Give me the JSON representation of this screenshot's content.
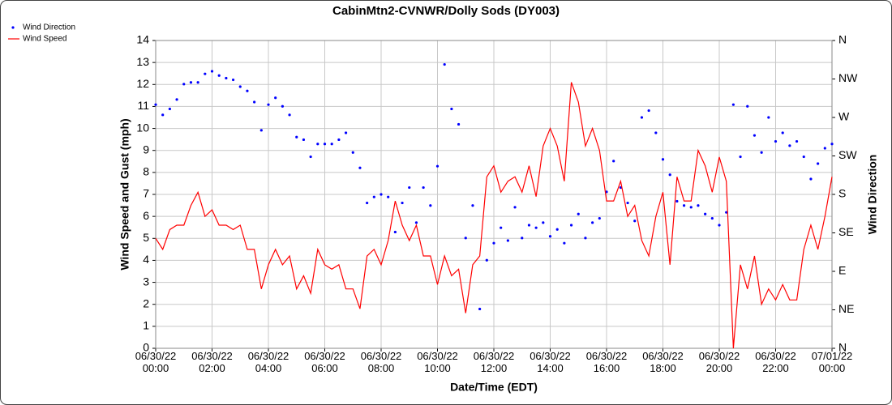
{
  "chart_data": {
    "type": "line",
    "title": "CabinMtn2-CVNWR/Dolly Sods (DY003)",
    "x_label": "Date/Time (EDT)",
    "y_label": "Wind Speed and Gust (mph)",
    "y2_label": "Wind Direction",
    "legend": "top-left",
    "grid": true,
    "x": [
      "06/30/22 00:00",
      "06/30/22 00:15",
      "06/30/22 00:30",
      "06/30/22 00:45",
      "06/30/22 01:00",
      "06/30/22 01:15",
      "06/30/22 01:30",
      "06/30/22 01:45",
      "06/30/22 02:00",
      "06/30/22 02:15",
      "06/30/22 02:30",
      "06/30/22 02:45",
      "06/30/22 03:00",
      "06/30/22 03:15",
      "06/30/22 03:30",
      "06/30/22 03:45",
      "06/30/22 04:00",
      "06/30/22 04:15",
      "06/30/22 04:30",
      "06/30/22 04:45",
      "06/30/22 05:00",
      "06/30/22 05:15",
      "06/30/22 05:30",
      "06/30/22 05:45",
      "06/30/22 06:00",
      "06/30/22 06:15",
      "06/30/22 06:30",
      "06/30/22 06:45",
      "06/30/22 07:00",
      "06/30/22 07:15",
      "06/30/22 07:30",
      "06/30/22 07:45",
      "06/30/22 08:00",
      "06/30/22 08:15",
      "06/30/22 08:30",
      "06/30/22 08:45",
      "06/30/22 09:00",
      "06/30/22 09:15",
      "06/30/22 09:30",
      "06/30/22 09:45",
      "06/30/22 10:00",
      "06/30/22 10:15",
      "06/30/22 10:30",
      "06/30/22 10:45",
      "06/30/22 11:00",
      "06/30/22 11:15",
      "06/30/22 11:30",
      "06/30/22 11:45",
      "06/30/22 12:00",
      "06/30/22 12:15",
      "06/30/22 12:30",
      "06/30/22 12:45",
      "06/30/22 13:00",
      "06/30/22 13:15",
      "06/30/22 13:30",
      "06/30/22 13:45",
      "06/30/22 14:00",
      "06/30/22 14:15",
      "06/30/22 14:30",
      "06/30/22 14:45",
      "06/30/22 15:00",
      "06/30/22 15:15",
      "06/30/22 15:30",
      "06/30/22 15:45",
      "06/30/22 16:00",
      "06/30/22 16:15",
      "06/30/22 16:30",
      "06/30/22 16:45",
      "06/30/22 17:00",
      "06/30/22 17:15",
      "06/30/22 17:30",
      "06/30/22 17:45",
      "06/30/22 18:00",
      "06/30/22 18:15",
      "06/30/22 18:30",
      "06/30/22 18:45",
      "06/30/22 19:00",
      "06/30/22 19:15",
      "06/30/22 19:30",
      "06/30/22 19:45",
      "06/30/22 20:00",
      "06/30/22 20:15",
      "06/30/22 20:30",
      "06/30/22 20:45",
      "06/30/22 21:00",
      "06/30/22 21:15",
      "06/30/22 21:30",
      "06/30/22 21:45",
      "06/30/22 22:00",
      "06/30/22 22:15",
      "06/30/22 22:30",
      "06/30/22 22:45",
      "06/30/22 23:00",
      "06/30/22 23:15",
      "06/30/22 23:30",
      "06/30/22 23:45",
      "07/01/22 00:00"
    ],
    "xlim": [
      "06/30/22 00:00",
      "07/01/22 00:00"
    ],
    "xticks": [
      "06/30/22 00:00",
      "06/30/22 02:00",
      "06/30/22 04:00",
      "06/30/22 06:00",
      "06/30/22 08:00",
      "06/30/22 10:00",
      "06/30/22 12:00",
      "06/30/22 14:00",
      "06/30/22 16:00",
      "06/30/22 18:00",
      "06/30/22 20:00",
      "06/30/22 22:00",
      "07/01/22 00:00"
    ],
    "ylim": [
      0,
      14
    ],
    "yticks": [
      0,
      1,
      2,
      3,
      4,
      5,
      6,
      7,
      8,
      9,
      10,
      11,
      12,
      13,
      14
    ],
    "y2lim": [
      0,
      360
    ],
    "y2ticks": [
      {
        "value": 0,
        "label": "N"
      },
      {
        "value": 45,
        "label": "NE"
      },
      {
        "value": 90,
        "label": "E"
      },
      {
        "value": 135,
        "label": "SE"
      },
      {
        "value": 180,
        "label": "S"
      },
      {
        "value": 225,
        "label": "SW"
      },
      {
        "value": 270,
        "label": "W"
      },
      {
        "value": 315,
        "label": "NW"
      },
      {
        "value": 360,
        "label": "N"
      }
    ],
    "series": [
      {
        "name": "Wind Direction",
        "type": "scatter",
        "axis": "y2",
        "color": "#0000ff",
        "values": [
          285,
          273,
          280,
          291,
          309,
          311,
          311,
          321,
          324,
          319,
          316,
          314,
          306,
          301,
          288,
          255,
          285,
          293,
          283,
          273,
          247,
          244,
          224,
          239,
          239,
          239,
          244,
          252,
          229,
          211,
          170,
          177,
          180,
          177,
          136,
          170,
          188,
          147,
          188,
          167,
          213,
          332,
          280,
          262,
          129,
          167,
          46,
          103,
          123,
          141,
          126,
          165,
          129,
          144,
          141,
          147,
          131,
          139,
          123,
          144,
          157,
          129,
          147,
          152,
          183,
          219,
          188,
          170,
          149,
          270,
          278,
          252,
          221,
          203,
          172,
          167,
          165,
          167,
          157,
          152,
          144,
          159,
          285,
          224,
          283,
          249,
          229,
          270,
          242,
          252,
          237,
          242,
          224,
          198,
          216,
          234,
          239
        ]
      },
      {
        "name": "Wind Speed",
        "type": "line",
        "color": "#ff0000",
        "values": [
          5.0,
          4.5,
          5.4,
          5.6,
          5.6,
          6.5,
          7.1,
          6.0,
          6.3,
          5.6,
          5.6,
          5.4,
          5.6,
          4.5,
          4.5,
          2.7,
          3.8,
          4.5,
          3.8,
          4.2,
          2.7,
          3.3,
          2.5,
          4.5,
          3.8,
          3.6,
          3.8,
          2.7,
          2.7,
          1.8,
          4.2,
          4.5,
          3.8,
          4.9,
          6.7,
          5.6,
          4.9,
          5.6,
          4.2,
          4.2,
          2.9,
          4.2,
          3.3,
          3.6,
          1.6,
          3.8,
          4.2,
          7.8,
          8.3,
          7.1,
          7.6,
          7.8,
          7.1,
          8.3,
          6.9,
          9.2,
          10.0,
          9.2,
          7.6,
          12.1,
          11.2,
          9.2,
          10.0,
          9.0,
          6.7,
          6.7,
          7.6,
          6.0,
          6.5,
          4.9,
          4.2,
          6.0,
          7.1,
          3.8,
          7.8,
          6.7,
          6.7,
          9.0,
          8.3,
          7.1,
          8.7,
          7.6,
          0.0,
          3.8,
          2.7,
          4.2,
          2.0,
          2.7,
          2.2,
          2.9,
          2.2,
          2.2,
          4.5,
          5.6,
          4.5,
          6.0,
          7.8
        ]
      }
    ]
  }
}
